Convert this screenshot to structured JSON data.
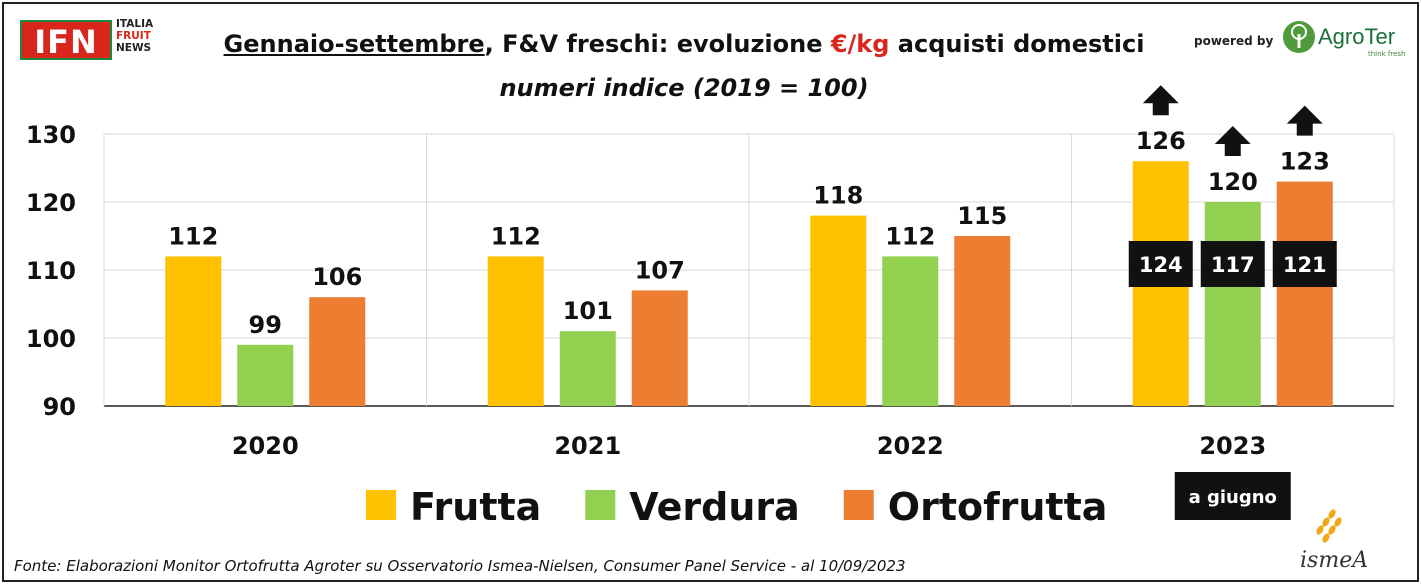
{
  "header": {
    "logo_left": {
      "main": "IFN",
      "line1": "ITALIA",
      "line2": "FRUIT",
      "line3": "NEWS"
    },
    "title_part1": "Gennaio-settembre",
    "title_part2": ", F&V freschi: evoluzione ",
    "title_part3": "€/kg",
    "title_part4": " acquisti domestici",
    "subtitle": "numeri indice (2019 = 100)",
    "powered_by": "powered by",
    "logo_right": {
      "name": "AgroTer",
      "tagline": "think fresh"
    }
  },
  "chart_data": {
    "type": "bar",
    "categories": [
      "2020",
      "2021",
      "2022",
      "2023"
    ],
    "series": [
      {
        "name": "Frutta",
        "color": "#ffc000",
        "values": [
          112,
          112,
          118,
          126
        ]
      },
      {
        "name": "Verdura",
        "color": "#92d050",
        "values": [
          99,
          101,
          112,
          120
        ]
      },
      {
        "name": "Ortofrutta",
        "color": "#ed7d31",
        "values": [
          106,
          107,
          115,
          123
        ]
      }
    ],
    "value_labels": [
      [
        "112",
        "112",
        "118",
        "126"
      ],
      [
        "99",
        "101",
        "112",
        "120"
      ],
      [
        "106",
        "107",
        "115",
        "123"
      ]
    ],
    "y_ticks": [
      "90",
      "100",
      "110",
      "120",
      "130"
    ],
    "ylim": [
      90,
      130
    ],
    "grid": true,
    "legend_position": "bottom",
    "annotation_2023_june": {
      "label": "a giugno",
      "values": [
        "124",
        "117",
        "121"
      ]
    },
    "arrows_up_2023": true
  },
  "footer": {
    "source": "Fonte: Elaborazioni Monitor Ortofrutta Agroter su Osservatorio Ismea-Nielsen, Consumer Panel Service - al 10/09/2023",
    "logo_bottom": "ismeA"
  }
}
